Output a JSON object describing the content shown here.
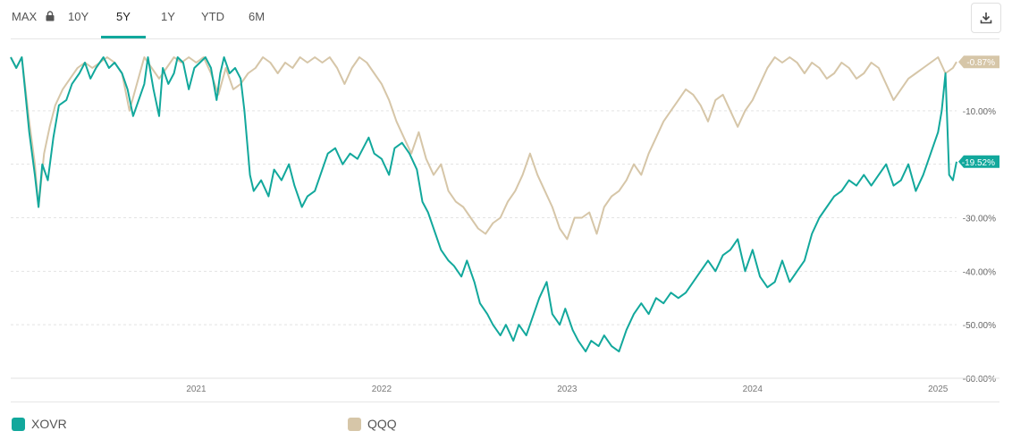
{
  "tabs": [
    {
      "label": "MAX",
      "active": false
    },
    {
      "label": "10Y",
      "active": false
    },
    {
      "label": "5Y",
      "active": true
    },
    {
      "label": "1Y",
      "active": false
    },
    {
      "label": "YTD",
      "active": false
    },
    {
      "label": "6M",
      "active": false
    }
  ],
  "colors": {
    "xovr": "#12a89c",
    "qqq": "#d6c6a8",
    "grid": "#e5e5e5",
    "text": "#555555",
    "accent": "#12a89c"
  },
  "icons": {
    "lock": "lock-icon",
    "download": "download-icon"
  },
  "legend": [
    {
      "name": "XOVR",
      "color": "#12a89c"
    },
    {
      "name": "QQQ",
      "color": "#d6c6a8"
    }
  ],
  "chart_data": {
    "type": "line",
    "x_ticks": [
      "2021",
      "2022",
      "2023",
      "2024",
      "2025"
    ],
    "y_ticks": [
      "-10.00%",
      "-20.00%",
      "-30.00%",
      "-40.00%",
      "-50.00%",
      "-60.00%"
    ],
    "ylim": [
      -60,
      0
    ],
    "xlim": [
      2020.0,
      2025.1
    ],
    "grid": true,
    "legend_position": "bottom",
    "series": [
      {
        "name": "XOVR",
        "end_label": "-19.52%",
        "color": "#12a89c",
        "points": [
          [
            2020.0,
            0
          ],
          [
            2020.03,
            -2
          ],
          [
            2020.06,
            0
          ],
          [
            2020.1,
            -14
          ],
          [
            2020.13,
            -22
          ],
          [
            2020.15,
            -28
          ],
          [
            2020.17,
            -20
          ],
          [
            2020.2,
            -23
          ],
          [
            2020.23,
            -15
          ],
          [
            2020.26,
            -9
          ],
          [
            2020.3,
            -8
          ],
          [
            2020.33,
            -5
          ],
          [
            2020.37,
            -3
          ],
          [
            2020.4,
            -1
          ],
          [
            2020.43,
            -4
          ],
          [
            2020.46,
            -2
          ],
          [
            2020.5,
            0
          ],
          [
            2020.53,
            -2
          ],
          [
            2020.56,
            -1
          ],
          [
            2020.6,
            -3
          ],
          [
            2020.63,
            -6
          ],
          [
            2020.66,
            -11
          ],
          [
            2020.68,
            -9
          ],
          [
            2020.72,
            -5
          ],
          [
            2020.74,
            0
          ],
          [
            2020.77,
            -6
          ],
          [
            2020.8,
            -11
          ],
          [
            2020.82,
            -2
          ],
          [
            2020.85,
            -5
          ],
          [
            2020.88,
            -3
          ],
          [
            2020.9,
            0
          ],
          [
            2020.93,
            -1
          ],
          [
            2020.96,
            -6
          ],
          [
            2020.99,
            -2
          ],
          [
            2021.02,
            -1
          ],
          [
            2021.05,
            0
          ],
          [
            2021.08,
            -2
          ],
          [
            2021.11,
            -8
          ],
          [
            2021.13,
            -3
          ],
          [
            2021.15,
            0
          ],
          [
            2021.18,
            -3
          ],
          [
            2021.21,
            -2
          ],
          [
            2021.24,
            -4
          ],
          [
            2021.26,
            -10
          ],
          [
            2021.29,
            -22
          ],
          [
            2021.31,
            -25
          ],
          [
            2021.35,
            -23
          ],
          [
            2021.39,
            -26
          ],
          [
            2021.42,
            -21
          ],
          [
            2021.46,
            -23
          ],
          [
            2021.5,
            -20
          ],
          [
            2021.53,
            -24
          ],
          [
            2021.57,
            -28
          ],
          [
            2021.6,
            -26
          ],
          [
            2021.64,
            -25
          ],
          [
            2021.68,
            -21
          ],
          [
            2021.71,
            -18
          ],
          [
            2021.75,
            -17
          ],
          [
            2021.79,
            -20
          ],
          [
            2021.83,
            -18
          ],
          [
            2021.87,
            -19
          ],
          [
            2021.9,
            -17
          ],
          [
            2021.93,
            -15
          ],
          [
            2021.96,
            -18
          ],
          [
            2022.0,
            -19
          ],
          [
            2022.04,
            -22
          ],
          [
            2022.07,
            -17
          ],
          [
            2022.11,
            -16
          ],
          [
            2022.15,
            -18
          ],
          [
            2022.19,
            -21
          ],
          [
            2022.22,
            -27
          ],
          [
            2022.25,
            -29
          ],
          [
            2022.29,
            -33
          ],
          [
            2022.32,
            -36
          ],
          [
            2022.36,
            -38
          ],
          [
            2022.39,
            -39
          ],
          [
            2022.43,
            -41
          ],
          [
            2022.46,
            -38
          ],
          [
            2022.5,
            -42
          ],
          [
            2022.53,
            -46
          ],
          [
            2022.57,
            -48
          ],
          [
            2022.6,
            -50
          ],
          [
            2022.64,
            -52
          ],
          [
            2022.67,
            -50
          ],
          [
            2022.71,
            -53
          ],
          [
            2022.74,
            -50
          ],
          [
            2022.78,
            -52
          ],
          [
            2022.82,
            -48
          ],
          [
            2022.85,
            -45
          ],
          [
            2022.89,
            -42
          ],
          [
            2022.92,
            -48
          ],
          [
            2022.96,
            -50
          ],
          [
            2022.99,
            -47
          ],
          [
            2023.03,
            -51
          ],
          [
            2023.06,
            -53
          ],
          [
            2023.1,
            -55
          ],
          [
            2023.13,
            -53
          ],
          [
            2023.17,
            -54
          ],
          [
            2023.2,
            -52
          ],
          [
            2023.24,
            -54
          ],
          [
            2023.28,
            -55
          ],
          [
            2023.32,
            -51
          ],
          [
            2023.36,
            -48
          ],
          [
            2023.4,
            -46
          ],
          [
            2023.44,
            -48
          ],
          [
            2023.48,
            -45
          ],
          [
            2023.52,
            -46
          ],
          [
            2023.56,
            -44
          ],
          [
            2023.6,
            -45
          ],
          [
            2023.64,
            -44
          ],
          [
            2023.68,
            -42
          ],
          [
            2023.72,
            -40
          ],
          [
            2023.76,
            -38
          ],
          [
            2023.8,
            -40
          ],
          [
            2023.84,
            -37
          ],
          [
            2023.88,
            -36
          ],
          [
            2023.92,
            -34
          ],
          [
            2023.96,
            -40
          ],
          [
            2024.0,
            -36
          ],
          [
            2024.04,
            -41
          ],
          [
            2024.08,
            -43
          ],
          [
            2024.12,
            -42
          ],
          [
            2024.16,
            -38
          ],
          [
            2024.2,
            -42
          ],
          [
            2024.24,
            -40
          ],
          [
            2024.28,
            -38
          ],
          [
            2024.32,
            -33
          ],
          [
            2024.36,
            -30
          ],
          [
            2024.4,
            -28
          ],
          [
            2024.44,
            -26
          ],
          [
            2024.48,
            -25
          ],
          [
            2024.52,
            -23
          ],
          [
            2024.56,
            -24
          ],
          [
            2024.6,
            -22
          ],
          [
            2024.64,
            -24
          ],
          [
            2024.68,
            -22
          ],
          [
            2024.72,
            -20
          ],
          [
            2024.76,
            -24
          ],
          [
            2024.8,
            -23
          ],
          [
            2024.84,
            -20
          ],
          [
            2024.88,
            -25
          ],
          [
            2024.92,
            -22
          ],
          [
            2024.96,
            -18
          ],
          [
            2025.0,
            -14
          ],
          [
            2025.02,
            -10
          ],
          [
            2025.04,
            -3
          ],
          [
            2025.06,
            -22
          ],
          [
            2025.08,
            -23
          ],
          [
            2025.1,
            -19.52
          ]
        ]
      },
      {
        "name": "QQQ",
        "end_label": "-0.87%",
        "color": "#d6c6a8",
        "points": [
          [
            2020.0,
            0
          ],
          [
            2020.03,
            -2
          ],
          [
            2020.06,
            0
          ],
          [
            2020.1,
            -12
          ],
          [
            2020.13,
            -20
          ],
          [
            2020.15,
            -28
          ],
          [
            2020.18,
            -18
          ],
          [
            2020.21,
            -13
          ],
          [
            2020.24,
            -9
          ],
          [
            2020.28,
            -6
          ],
          [
            2020.32,
            -4
          ],
          [
            2020.36,
            -2
          ],
          [
            2020.4,
            -1
          ],
          [
            2020.44,
            -2
          ],
          [
            2020.48,
            -1
          ],
          [
            2020.52,
            0
          ],
          [
            2020.56,
            -1
          ],
          [
            2020.6,
            -3
          ],
          [
            2020.64,
            -10
          ],
          [
            2020.68,
            -5
          ],
          [
            2020.72,
            0
          ],
          [
            2020.76,
            -2
          ],
          [
            2020.8,
            -4
          ],
          [
            2020.84,
            -2
          ],
          [
            2020.88,
            0
          ],
          [
            2020.92,
            -1
          ],
          [
            2020.96,
            0
          ],
          [
            2021.0,
            -1
          ],
          [
            2021.04,
            0
          ],
          [
            2021.08,
            -3
          ],
          [
            2021.12,
            -7
          ],
          [
            2021.16,
            -2
          ],
          [
            2021.2,
            -6
          ],
          [
            2021.24,
            -5
          ],
          [
            2021.28,
            -3
          ],
          [
            2021.32,
            -2
          ],
          [
            2021.36,
            0
          ],
          [
            2021.4,
            -1
          ],
          [
            2021.44,
            -3
          ],
          [
            2021.48,
            -1
          ],
          [
            2021.52,
            -2
          ],
          [
            2021.56,
            0
          ],
          [
            2021.6,
            -1
          ],
          [
            2021.64,
            0
          ],
          [
            2021.68,
            -1
          ],
          [
            2021.72,
            0
          ],
          [
            2021.76,
            -2
          ],
          [
            2021.8,
            -5
          ],
          [
            2021.84,
            -2
          ],
          [
            2021.88,
            0
          ],
          [
            2021.92,
            -1
          ],
          [
            2021.96,
            -3
          ],
          [
            2022.0,
            -5
          ],
          [
            2022.04,
            -8
          ],
          [
            2022.08,
            -12
          ],
          [
            2022.12,
            -15
          ],
          [
            2022.16,
            -18
          ],
          [
            2022.2,
            -14
          ],
          [
            2022.24,
            -19
          ],
          [
            2022.28,
            -22
          ],
          [
            2022.32,
            -20
          ],
          [
            2022.36,
            -25
          ],
          [
            2022.4,
            -27
          ],
          [
            2022.44,
            -28
          ],
          [
            2022.48,
            -30
          ],
          [
            2022.52,
            -32
          ],
          [
            2022.56,
            -33
          ],
          [
            2022.6,
            -31
          ],
          [
            2022.64,
            -30
          ],
          [
            2022.68,
            -27
          ],
          [
            2022.72,
            -25
          ],
          [
            2022.76,
            -22
          ],
          [
            2022.8,
            -18
          ],
          [
            2022.84,
            -22
          ],
          [
            2022.88,
            -25
          ],
          [
            2022.92,
            -28
          ],
          [
            2022.96,
            -32
          ],
          [
            2023.0,
            -34
          ],
          [
            2023.04,
            -30
          ],
          [
            2023.08,
            -30
          ],
          [
            2023.12,
            -29
          ],
          [
            2023.16,
            -33
          ],
          [
            2023.2,
            -28
          ],
          [
            2023.24,
            -26
          ],
          [
            2023.28,
            -25
          ],
          [
            2023.32,
            -23
          ],
          [
            2023.36,
            -20
          ],
          [
            2023.4,
            -22
          ],
          [
            2023.44,
            -18
          ],
          [
            2023.48,
            -15
          ],
          [
            2023.52,
            -12
          ],
          [
            2023.56,
            -10
          ],
          [
            2023.6,
            -8
          ],
          [
            2023.64,
            -6
          ],
          [
            2023.68,
            -7
          ],
          [
            2023.72,
            -9
          ],
          [
            2023.76,
            -12
          ],
          [
            2023.8,
            -8
          ],
          [
            2023.84,
            -7
          ],
          [
            2023.88,
            -10
          ],
          [
            2023.92,
            -13
          ],
          [
            2023.96,
            -10
          ],
          [
            2024.0,
            -8
          ],
          [
            2024.04,
            -5
          ],
          [
            2024.08,
            -2
          ],
          [
            2024.12,
            0
          ],
          [
            2024.16,
            -1
          ],
          [
            2024.2,
            0
          ],
          [
            2024.24,
            -1
          ],
          [
            2024.28,
            -3
          ],
          [
            2024.32,
            -1
          ],
          [
            2024.36,
            -2
          ],
          [
            2024.4,
            -4
          ],
          [
            2024.44,
            -3
          ],
          [
            2024.48,
            -1
          ],
          [
            2024.52,
            -2
          ],
          [
            2024.56,
            -4
          ],
          [
            2024.6,
            -3
          ],
          [
            2024.64,
            -1
          ],
          [
            2024.68,
            -2
          ],
          [
            2024.72,
            -5
          ],
          [
            2024.76,
            -8
          ],
          [
            2024.8,
            -6
          ],
          [
            2024.84,
            -4
          ],
          [
            2024.88,
            -3
          ],
          [
            2024.92,
            -2
          ],
          [
            2024.96,
            -1
          ],
          [
            2025.0,
            0
          ],
          [
            2025.04,
            -3
          ],
          [
            2025.08,
            -2
          ],
          [
            2025.1,
            -0.87
          ]
        ]
      }
    ]
  }
}
